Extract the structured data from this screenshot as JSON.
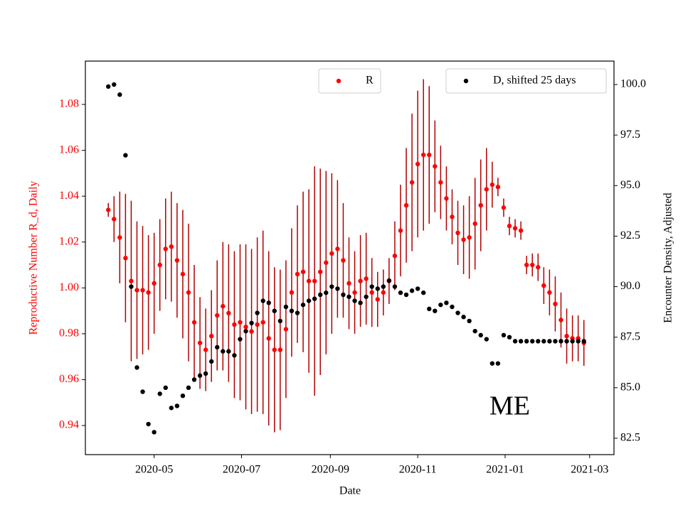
{
  "chart_data": {
    "type": "scatter-dual",
    "xlabel": "Date",
    "ylabel": "Reproductive Number R_d, Daily",
    "y2label": "Encounter Density, Adjusted",
    "annotation": "ME",
    "xlim": [
      "2020-03-14",
      "2021-03-18"
    ],
    "xticks": [
      {
        "value": "2020-05-01",
        "label": "2020-05"
      },
      {
        "value": "2020-07-01",
        "label": "2020-07"
      },
      {
        "value": "2020-09-01",
        "label": "2020-09"
      },
      {
        "value": "2020-11-01",
        "label": "2020-11"
      },
      {
        "value": "2021-01-01",
        "label": "2021-01"
      },
      {
        "value": "2021-03-01",
        "label": "2021-03"
      }
    ],
    "ylim": [
      0.9273,
      1.0989
    ],
    "yticks": [
      0.94,
      0.96,
      0.98,
      {
        "value": 1.0,
        "label": "1.00"
      },
      1.02,
      1.04,
      1.06,
      1.08
    ],
    "y2lim": [
      81.69,
      101.16
    ],
    "y2ticks": [
      {
        "value": 82.5,
        "label": "82.5"
      },
      {
        "value": 85,
        "label": "85.0"
      },
      87.5,
      {
        "value": 90,
        "label": "90.0"
      },
      92.5,
      {
        "value": 95,
        "label": "95.0"
      },
      97.5,
      {
        "value": 100,
        "label": "100.0"
      }
    ],
    "x": [
      "2020-03-30",
      "2020-04-03",
      "2020-04-07",
      "2020-04-11",
      "2020-04-15",
      "2020-04-19",
      "2020-04-23",
      "2020-04-27",
      "2020-05-01",
      "2020-05-05",
      "2020-05-09",
      "2020-05-13",
      "2020-05-17",
      "2020-05-21",
      "2020-05-25",
      "2020-05-29",
      "2020-06-02",
      "2020-06-06",
      "2020-06-10",
      "2020-06-14",
      "2020-06-18",
      "2020-06-22",
      "2020-06-26",
      "2020-06-30",
      "2020-07-04",
      "2020-07-08",
      "2020-07-12",
      "2020-07-16",
      "2020-07-20",
      "2020-07-24",
      "2020-07-28",
      "2020-08-01",
      "2020-08-05",
      "2020-08-09",
      "2020-08-13",
      "2020-08-17",
      "2020-08-21",
      "2020-08-25",
      "2020-08-29",
      "2020-09-02",
      "2020-09-06",
      "2020-09-10",
      "2020-09-14",
      "2020-09-18",
      "2020-09-22",
      "2020-09-26",
      "2020-09-30",
      "2020-10-04",
      "2020-10-08",
      "2020-10-12",
      "2020-10-16",
      "2020-10-20",
      "2020-10-24",
      "2020-10-28",
      "2020-11-01",
      "2020-11-05",
      "2020-11-09",
      "2020-11-13",
      "2020-11-17",
      "2020-11-21",
      "2020-11-25",
      "2020-11-29",
      "2020-12-03",
      "2020-12-07",
      "2020-12-11",
      "2020-12-15",
      "2020-12-19",
      "2020-12-23",
      "2020-12-27",
      "2020-12-31",
      "2021-01-04",
      "2021-01-08",
      "2021-01-12",
      "2021-01-16",
      "2021-01-20",
      "2021-01-24",
      "2021-01-28",
      "2021-02-01",
      "2021-02-05",
      "2021-02-09",
      "2021-02-13",
      "2021-02-17",
      "2021-02-21",
      "2021-02-25"
    ],
    "series": [
      {
        "name": "R",
        "color": "#ff0000",
        "error_color": "#b00000",
        "values": [
          1.034,
          1.03,
          1.022,
          1.013,
          1.003,
          0.999,
          0.999,
          0.998,
          1.002,
          1.01,
          1.017,
          1.018,
          1.012,
          1.006,
          0.998,
          0.985,
          0.976,
          0.973,
          0.979,
          0.988,
          0.992,
          0.989,
          0.984,
          0.985,
          0.983,
          0.981,
          0.984,
          0.985,
          0.978,
          0.973,
          0.973,
          0.982,
          0.998,
          1.006,
          1.007,
          1.003,
          1.003,
          1.007,
          1.011,
          1.015,
          1.017,
          1.012,
          1.002,
          0.998,
          1.003,
          1.004,
          0.998,
          0.995,
          0.998,
          1.003,
          1.014,
          1.025,
          1.036,
          1.046,
          1.054,
          1.058,
          1.058,
          1.053,
          1.046,
          1.039,
          1.031,
          1.024,
          1.021,
          1.022,
          1.028,
          1.036,
          1.043,
          1.045,
          1.044,
          1.035,
          1.027,
          1.026,
          1.025,
          1.01,
          1.01,
          1.009,
          1.001,
          0.998,
          0.993,
          0.986,
          0.979,
          0.978,
          0.978,
          0.976
        ],
        "errors": [
          0.003,
          0.01,
          0.02,
          0.028,
          0.035,
          0.03,
          0.028,
          0.025,
          0.022,
          0.02,
          0.022,
          0.024,
          0.025,
          0.028,
          0.03,
          0.025,
          0.02,
          0.018,
          0.02,
          0.024,
          0.028,
          0.03,
          0.032,
          0.034,
          0.036,
          0.036,
          0.038,
          0.04,
          0.038,
          0.036,
          0.035,
          0.03,
          0.028,
          0.03,
          0.035,
          0.04,
          0.05,
          0.045,
          0.04,
          0.035,
          0.03,
          0.025,
          0.02,
          0.018,
          0.02,
          0.02,
          0.015,
          0.012,
          0.01,
          0.01,
          0.015,
          0.02,
          0.025,
          0.03,
          0.032,
          0.033,
          0.03,
          0.02,
          0.016,
          0.014,
          0.012,
          0.014,
          0.015,
          0.018,
          0.02,
          0.02,
          0.018,
          0.01,
          0.004,
          0.004,
          0.004,
          0.004,
          0.004,
          0.004,
          0.005,
          0.006,
          0.008,
          0.01,
          0.012,
          0.012,
          0.012,
          0.01,
          0.01,
          0.01
        ]
      },
      {
        "name": "D, shifted 25 days",
        "color": "#000000",
        "axis": "y2",
        "values": [
          99.9,
          100.0,
          99.5,
          96.5,
          90.0,
          86.0,
          84.8,
          83.2,
          82.8,
          84.7,
          85.0,
          84.0,
          84.1,
          84.6,
          85.0,
          85.4,
          85.6,
          85.7,
          86.3,
          87.0,
          86.8,
          86.8,
          86.6,
          87.4,
          87.8,
          88.2,
          88.7,
          89.3,
          89.2,
          88.8,
          88.3,
          89.0,
          88.8,
          88.7,
          89.1,
          89.3,
          89.4,
          89.6,
          89.7,
          90.0,
          89.9,
          89.6,
          89.5,
          89.3,
          89.2,
          89.5,
          90.0,
          89.9,
          90.0,
          90.3,
          90.0,
          89.7,
          89.6,
          89.8,
          89.9,
          89.7,
          88.9,
          88.8,
          89.1,
          89.2,
          89.0,
          88.7,
          88.5,
          88.3,
          87.8,
          87.6,
          87.4,
          86.2,
          86.2,
          87.6,
          87.5,
          87.3,
          87.3,
          87.3,
          87.3,
          87.3,
          87.3,
          87.3,
          87.3,
          87.3,
          87.3,
          87.3,
          87.3,
          87.3
        ]
      }
    ]
  }
}
